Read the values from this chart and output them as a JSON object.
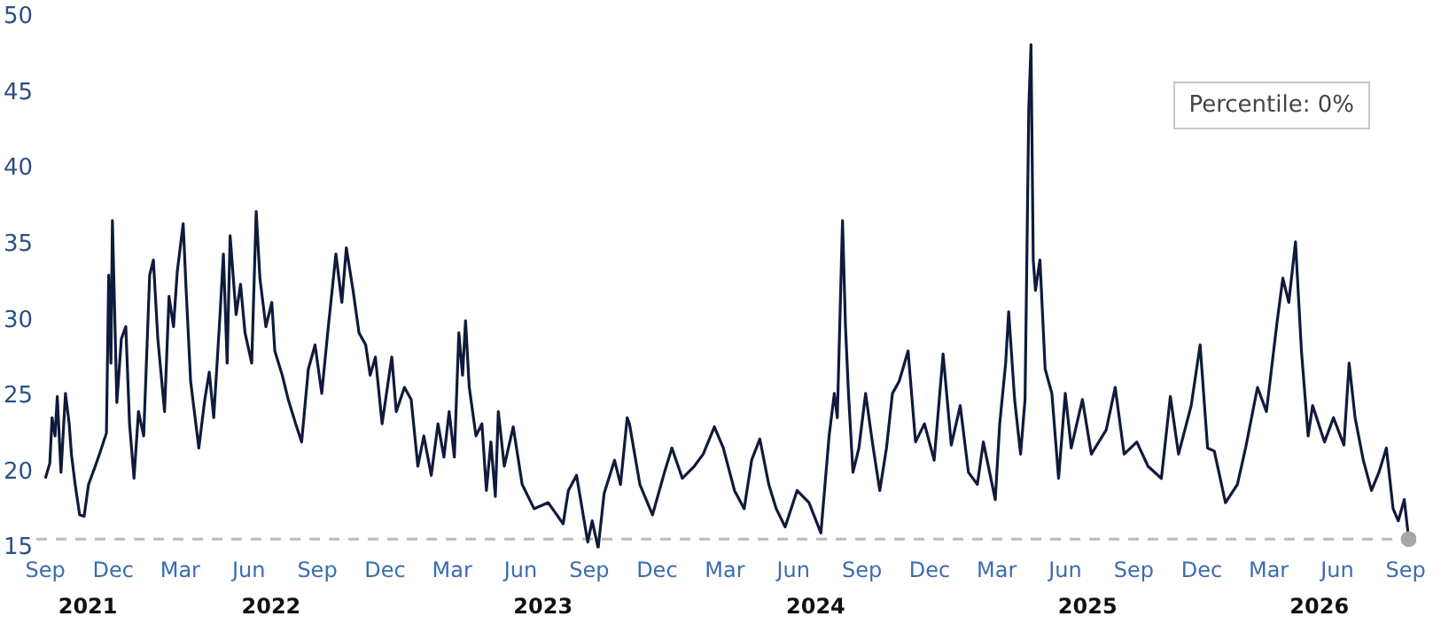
{
  "chart_data": {
    "type": "line",
    "annotations": [
      "Percentile: 0%"
    ],
    "xlim": [
      "2021-08-20",
      "2026-09-15"
    ],
    "xticks": [
      {
        "value": "2021-09-01",
        "label": "Sep"
      },
      {
        "value": "2021-12-01",
        "label": "Dec"
      },
      {
        "value": "2022-03-01",
        "label": "Mar"
      },
      {
        "value": "2022-06-01",
        "label": "Jun"
      },
      {
        "value": "2022-09-01",
        "label": "Sep"
      },
      {
        "value": "2022-12-01",
        "label": "Dec"
      },
      {
        "value": "2023-03-01",
        "label": "Mar"
      },
      {
        "value": "2023-06-01",
        "label": "Jun"
      },
      {
        "value": "2023-09-01",
        "label": "Sep"
      },
      {
        "value": "2023-12-01",
        "label": "Dec"
      },
      {
        "value": "2024-03-01",
        "label": "Mar"
      },
      {
        "value": "2024-06-01",
        "label": "Jun"
      },
      {
        "value": "2024-09-01",
        "label": "Sep"
      },
      {
        "value": "2024-12-01",
        "label": "Dec"
      },
      {
        "value": "2025-03-01",
        "label": "Mar"
      },
      {
        "value": "2025-06-01",
        "label": "Jun"
      },
      {
        "value": "2025-09-01",
        "label": "Sep"
      },
      {
        "value": "2025-12-01",
        "label": "Dec"
      },
      {
        "value": "2026-03-01",
        "label": "Mar"
      },
      {
        "value": "2026-06-01",
        "label": "Jun"
      },
      {
        "value": "2026-09-01",
        "label": "Sep"
      }
    ],
    "x2lim": [
      "2021-08-20",
      "2026-09-15"
    ],
    "x2ticks": [
      {
        "value": "2021-10-28",
        "label": "2021"
      },
      {
        "value": "2022-07-01",
        "label": "2022"
      },
      {
        "value": "2023-07-01",
        "label": "2023"
      },
      {
        "value": "2024-07-01",
        "label": "2024"
      },
      {
        "value": "2025-07-01",
        "label": "2025"
      },
      {
        "value": "2026-05-08",
        "label": "2026"
      }
    ],
    "ylim": [
      15,
      50
    ],
    "yticks": [
      15,
      20,
      25,
      30,
      35,
      40,
      45,
      50
    ],
    "ref_lines": [
      {
        "axis": "y",
        "value": 15.6,
        "color": "#bbbbbb",
        "line_style": "dashed"
      }
    ],
    "series": [
      {
        "color": "#0f1a3c",
        "x": [
          "2021-09-01",
          "2021-09-07",
          "2021-09-10",
          "2021-09-14",
          "2021-09-17",
          "2021-09-22",
          "2021-09-28",
          "2021-10-03",
          "2021-10-06",
          "2021-10-11",
          "2021-10-17",
          "2021-10-23",
          "2021-10-29",
          "2021-11-07",
          "2021-11-14",
          "2021-11-22",
          "2021-11-25",
          "2021-11-28",
          "2021-11-30",
          "2021-12-06",
          "2021-12-12",
          "2021-12-18",
          "2021-12-23",
          "2021-12-29",
          "2022-01-04",
          "2022-01-11",
          "2022-01-19",
          "2022-01-24",
          "2022-01-30",
          "2022-02-08",
          "2022-02-14",
          "2022-02-20",
          "2022-02-25",
          "2022-03-05",
          "2022-03-09",
          "2022-03-15",
          "2022-03-26",
          "2022-04-03",
          "2022-04-09",
          "2022-04-15",
          "2022-04-23",
          "2022-04-28",
          "2022-05-03",
          "2022-05-07",
          "2022-05-15",
          "2022-05-21",
          "2022-05-27",
          "2022-06-05",
          "2022-06-11",
          "2022-06-16",
          "2022-06-24",
          "2022-07-02",
          "2022-07-06",
          "2022-07-16",
          "2022-07-24",
          "2022-08-03",
          "2022-08-11",
          "2022-08-20",
          "2022-08-29",
          "2022-09-07",
          "2022-09-15",
          "2022-09-26",
          "2022-10-04",
          "2022-10-10",
          "2022-10-19",
          "2022-10-27",
          "2022-11-05",
          "2022-11-11",
          "2022-11-18",
          "2022-11-27",
          "2022-12-10",
          "2022-12-16",
          "2022-12-27",
          "2023-01-05",
          "2023-01-14",
          "2023-01-22",
          "2023-02-01",
          "2023-02-10",
          "2023-02-18",
          "2023-02-25",
          "2023-03-04",
          "2023-03-10",
          "2023-03-15",
          "2023-03-19",
          "2023-03-24",
          "2023-04-02",
          "2023-04-10",
          "2023-04-16",
          "2023-04-22",
          "2023-04-28",
          "2023-05-02",
          "2023-05-10",
          "2023-05-22",
          "2023-06-03",
          "2023-06-19",
          "2023-07-08",
          "2023-07-28",
          "2023-08-04",
          "2023-08-15",
          "2023-08-30",
          "2023-09-05",
          "2023-09-13",
          "2023-09-21",
          "2023-10-05",
          "2023-10-13",
          "2023-10-22",
          "2023-10-25",
          "2023-11-08",
          "2023-11-25",
          "2023-12-11",
          "2023-12-21",
          "2024-01-04",
          "2024-01-20",
          "2024-02-01",
          "2024-02-16",
          "2024-02-28",
          "2024-03-14",
          "2024-03-27",
          "2024-04-06",
          "2024-04-17",
          "2024-04-29",
          "2024-05-09",
          "2024-05-21",
          "2024-06-06",
          "2024-06-22",
          "2024-07-08",
          "2024-07-19",
          "2024-07-26",
          "2024-07-30",
          "2024-08-06",
          "2024-08-10",
          "2024-08-14",
          "2024-08-20",
          "2024-08-28",
          "2024-09-06",
          "2024-09-15",
          "2024-09-25",
          "2024-10-04",
          "2024-10-12",
          "2024-10-21",
          "2024-11-02",
          "2024-11-12",
          "2024-11-24",
          "2024-12-07",
          "2024-12-19",
          "2024-12-30",
          "2025-01-11",
          "2025-01-22",
          "2025-02-03",
          "2025-02-11",
          "2025-02-27",
          "2025-03-05",
          "2025-03-13",
          "2025-03-17",
          "2025-03-25",
          "2025-04-02",
          "2025-04-08",
          "2025-04-13",
          "2025-04-16",
          "2025-04-19",
          "2025-04-22",
          "2025-04-28",
          "2025-05-05",
          "2025-05-14",
          "2025-05-23",
          "2025-06-01",
          "2025-06-09",
          "2025-06-24",
          "2025-07-06",
          "2025-07-26",
          "2025-08-07",
          "2025-08-19",
          "2025-09-05",
          "2025-09-20",
          "2025-10-08",
          "2025-10-20",
          "2025-10-31",
          "2025-11-17",
          "2025-11-29",
          "2025-12-09",
          "2025-12-18",
          "2026-01-02",
          "2026-01-18",
          "2026-01-29",
          "2026-02-14",
          "2026-02-26",
          "2026-03-12",
          "2026-03-20",
          "2026-03-28",
          "2026-04-06",
          "2026-04-14",
          "2026-04-23",
          "2026-04-29",
          "2026-05-15",
          "2026-05-27",
          "2026-06-10",
          "2026-06-17",
          "2026-06-25",
          "2026-07-06",
          "2026-07-17",
          "2026-07-27",
          "2026-08-06",
          "2026-08-15",
          "2026-08-22",
          "2026-08-30",
          "2026-09-05"
        ],
        "values": [
          19.6,
          20.6,
          23.6,
          22.4,
          25,
          20,
          25.2,
          23.2,
          21.2,
          19.2,
          17.2,
          17.1,
          19.2,
          20.4,
          21.4,
          22.6,
          33,
          27.2,
          36.6,
          24.6,
          28.8,
          29.6,
          23.2,
          19.6,
          24,
          22.4,
          33,
          34,
          28.8,
          24,
          31.6,
          29.6,
          33.2,
          36.4,
          32,
          26,
          21.6,
          24.8,
          26.6,
          23.6,
          30,
          34.4,
          27.2,
          35.6,
          30.4,
          32.4,
          29.2,
          27.2,
          37.2,
          32.8,
          29.6,
          31.2,
          28,
          26.4,
          24.8,
          23.2,
          22,
          26.8,
          28.4,
          25.2,
          29.2,
          34.4,
          31.2,
          34.8,
          32,
          29.2,
          28.4,
          26.4,
          27.6,
          23.2,
          27.6,
          24,
          25.6,
          24.8,
          20.4,
          22.4,
          19.8,
          23.2,
          21,
          24,
          21,
          29.2,
          26.4,
          30,
          25.6,
          22.4,
          23.2,
          18.8,
          22,
          18.4,
          24,
          20.4,
          23,
          19.2,
          17.6,
          18,
          16.6,
          18.8,
          19.8,
          15.4,
          16.8,
          15,
          18.6,
          20.8,
          19.2,
          23.6,
          23.2,
          19.2,
          17.2,
          20,
          21.6,
          19.6,
          20.4,
          21.2,
          23,
          21.6,
          18.8,
          17.6,
          20.8,
          22.2,
          19.2,
          17.6,
          16.4,
          18.8,
          18,
          16,
          22.4,
          25.2,
          23.6,
          36.6,
          29.6,
          25.2,
          20,
          21.6,
          25.2,
          22,
          18.8,
          21.6,
          25.2,
          26,
          28,
          22,
          23.2,
          20.8,
          27.8,
          21.8,
          24.4,
          20,
          19.2,
          22,
          18.2,
          23.2,
          27.2,
          30.6,
          24.8,
          21.2,
          24.8,
          44,
          48.2,
          34,
          32,
          34,
          26.8,
          25.2,
          19.6,
          25.2,
          21.6,
          24.8,
          21.2,
          22.8,
          25.6,
          21.2,
          22,
          20.4,
          19.6,
          25,
          21.2,
          24.4,
          28.4,
          21.6,
          21.4,
          18,
          19.2,
          21.6,
          25.6,
          24,
          29.8,
          32.8,
          31.2,
          35.2,
          28,
          22.4,
          24.4,
          22,
          23.6,
          21.8,
          27.2,
          23.6,
          20.8,
          18.8,
          20,
          21.6,
          17.6,
          16.8,
          18.2,
          15.6
        ]
      },
      {
        "type": "scatter",
        "color": "#a6a6a6",
        "marker": "circle",
        "x": [
          "2026-09-05"
        ],
        "values": [
          15.6
        ]
      }
    ]
  }
}
